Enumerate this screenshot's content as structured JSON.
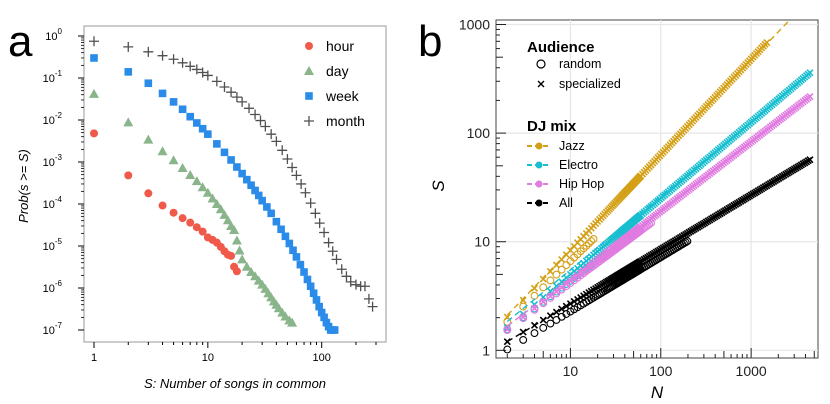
{
  "panel_a": {
    "letter": "a",
    "chart_data": {
      "type": "scatter",
      "xscale": "log",
      "yscale": "log",
      "xlabel": "S: Number of songs in common",
      "ylabel": "Prob(s >= S)",
      "xlim": [
        1,
        300
      ],
      "ylim": [
        1e-07,
        1
      ],
      "x_ticks": [
        {
          "v": 1,
          "label": "1"
        },
        {
          "v": 10,
          "label": "10"
        },
        {
          "v": 100,
          "label": "100"
        }
      ],
      "y_ticks": [
        {
          "v": 1,
          "label": "10",
          "exp": "0"
        },
        {
          "v": 0.1,
          "label": "10",
          "exp": "-1"
        },
        {
          "v": 0.01,
          "label": "10",
          "exp": "-2"
        },
        {
          "v": 0.001,
          "label": "10",
          "exp": "-3"
        },
        {
          "v": 0.0001,
          "label": "10",
          "exp": "-4"
        },
        {
          "v": 1e-05,
          "label": "10",
          "exp": "-5"
        },
        {
          "v": 1e-06,
          "label": "10",
          "exp": "-6"
        },
        {
          "v": 1e-07,
          "label": "10",
          "exp": "-7"
        }
      ],
      "series": [
        {
          "name": "hour",
          "color": "#f05a4a",
          "marker": "circle",
          "x": [
            1,
            2,
            3,
            4,
            5,
            6,
            7,
            8,
            9,
            10,
            11,
            12,
            13,
            14,
            15,
            16,
            17,
            18
          ],
          "y": [
            0.0048,
            0.00048,
            0.00018,
            9.2e-05,
            6.2e-05,
            4.6e-05,
            3.6e-05,
            2.8e-05,
            2.2e-05,
            1.6e-05,
            1.4e-05,
            1.2e-05,
            9.5e-06,
            7.5e-06,
            6.2e-06,
            5.8e-06,
            3.2e-06,
            2.5e-06
          ]
        },
        {
          "name": "day",
          "color": "#8ab48a",
          "marker": "triangle",
          "x": [
            1,
            2,
            3,
            4,
            5,
            6,
            7,
            8,
            9,
            10,
            11,
            12,
            13,
            14,
            15,
            16,
            17,
            18,
            19,
            20,
            22,
            24,
            26,
            28,
            30,
            32,
            34,
            36,
            38,
            40,
            42,
            45,
            48,
            52,
            55
          ],
          "y": [
            0.042,
            0.0088,
            0.0034,
            0.0018,
            0.0011,
            0.00072,
            0.00049,
            0.00035,
            0.00025,
            0.000185,
            0.000135,
            0.0001,
            7.5e-05,
            5.5e-05,
            4.1e-05,
            3e-05,
            2.4e-05,
            1.35e-05,
            7.8e-06,
            4.8e-06,
            3.2e-06,
            2.4e-06,
            1.9e-06,
            1.5e-06,
            1.2e-06,
            9.5e-07,
            7.5e-07,
            6e-07,
            4.8e-07,
            4e-07,
            3.3e-07,
            2.6e-07,
            2.1e-07,
            1.7e-07,
            1.5e-07
          ]
        },
        {
          "name": "week",
          "color": "#2a8ce8",
          "marker": "square",
          "x": [
            1,
            2,
            3,
            4,
            5,
            6,
            7,
            8,
            9,
            10,
            12,
            14,
            16,
            18,
            20,
            22,
            24,
            26,
            28,
            30,
            33,
            36,
            40,
            44,
            48,
            52,
            56,
            60,
            65,
            70,
            75,
            80,
            85,
            90,
            95,
            100,
            105,
            110,
            115,
            120,
            125,
            130
          ],
          "y": [
            0.3,
            0.14,
            0.075,
            0.043,
            0.027,
            0.018,
            0.012,
            0.0085,
            0.0062,
            0.0046,
            0.0027,
            0.0017,
            0.00112,
            0.00076,
            0.00053,
            0.00038,
            0.00028,
            0.00021,
            0.00016,
            0.00012,
            8.5e-05,
            6e-05,
            3.8e-05,
            2.5e-05,
            1.7e-05,
            1.15e-05,
            7.9e-06,
            5.5e-06,
            3.6e-06,
            2.4e-06,
            1.6e-06,
            1.1e-06,
            7.5e-07,
            5.2e-07,
            3.6e-07,
            2.6e-07,
            2e-07,
            1.5e-07,
            1.2e-07,
            1e-07,
            1e-07,
            1e-07
          ]
        },
        {
          "name": "month",
          "color": "#505050",
          "marker": "plus",
          "x": [
            1,
            2,
            3,
            4,
            5,
            6,
            7,
            8,
            9,
            10,
            12,
            14,
            16,
            18,
            20,
            23,
            26,
            29,
            32,
            36,
            40,
            45,
            50,
            55,
            60,
            66,
            72,
            80,
            88,
            96,
            105,
            115,
            125,
            135,
            150,
            165,
            180,
            200,
            220,
            240,
            260,
            280
          ],
          "y": [
            0.75,
            0.55,
            0.42,
            0.34,
            0.28,
            0.23,
            0.19,
            0.16,
            0.135,
            0.115,
            0.083,
            0.061,
            0.046,
            0.035,
            0.027,
            0.019,
            0.0135,
            0.0097,
            0.007,
            0.0046,
            0.0031,
            0.0019,
            0.00118,
            0.00074,
            0.00048,
            0.0003,
            0.000185,
            0.000105,
            6e-05,
            3.5e-05,
            2.1e-05,
            1.2e-05,
            7.5e-06,
            4.8e-06,
            2.8e-06,
            1.9e-06,
            1.4e-06,
            1.2e-06,
            1.1e-06,
            1.1e-06,
            5.5e-07,
            3.6e-07
          ]
        }
      ]
    }
  },
  "panel_b": {
    "letter": "b",
    "chart_data": {
      "type": "scatter",
      "xscale": "log",
      "yscale": "log",
      "xlabel": "N",
      "ylabel": "S",
      "xlim": [
        1.5,
        5500
      ],
      "ylim": [
        0.85,
        1100
      ],
      "x_ticks": [
        {
          "v": 10,
          "label": "10"
        },
        {
          "v": 100,
          "label": "100"
        },
        {
          "v": 1000,
          "label": "1000"
        }
      ],
      "y_ticks": [
        {
          "v": 1,
          "label": "1"
        },
        {
          "v": 10,
          "label": "10"
        },
        {
          "v": 100,
          "label": "100"
        },
        {
          "v": 1000,
          "label": "1000"
        }
      ],
      "legend_audience": {
        "title": "Audience",
        "items": [
          {
            "label": "random",
            "marker": "open-circle"
          },
          {
            "label": "specialized",
            "marker": "cross"
          }
        ]
      },
      "legend_mix": {
        "title": "DJ mix",
        "items": [
          "Jazz",
          "Electro",
          "Hip Hop",
          "All"
        ]
      },
      "series": [
        {
          "name": "Jazz",
          "color": "#d4a017",
          "specialized": {
            "a": 1.1,
            "b": 0.88,
            "x_range": [
              2,
              1500
            ]
          },
          "random": {
            "a": 1.05,
            "b": 0.8,
            "x_range": [
              2,
              18
            ]
          },
          "fit": {
            "a": 1.15,
            "b": 0.87,
            "x_range": [
              2,
              5000
            ]
          }
        },
        {
          "name": "Electro",
          "color": "#17becf",
          "specialized": {
            "a": 1.0,
            "b": 0.7,
            "x_range": [
              2,
              4500
            ]
          },
          "random": {
            "a": 1.0,
            "b": 0.64,
            "x_range": [
              2,
              25
            ]
          },
          "fit": {
            "a": 1.15,
            "b": 0.68,
            "x_range": [
              2,
              4500
            ]
          }
        },
        {
          "name": "Hip Hop",
          "color": "#e07be0",
          "specialized": {
            "a": 1.0,
            "b": 0.64,
            "x_range": [
              2,
              4500
            ]
          },
          "random": {
            "a": 1.0,
            "b": 0.62,
            "x_range": [
              2,
              80
            ]
          },
          "fit": {
            "a": 1.08,
            "b": 0.63,
            "x_range": [
              2,
              4500
            ]
          }
        },
        {
          "name": "All",
          "color": "#000000",
          "specialized": {
            "a": 0.85,
            "b": 0.5,
            "x_range": [
              2,
              4500
            ]
          },
          "random": {
            "a": 0.72,
            "b": 0.5,
            "x_range": [
              2,
              200
            ]
          },
          "fit": {
            "a": 0.85,
            "b": 0.5,
            "x_range": [
              2,
              4500
            ]
          }
        }
      ]
    }
  }
}
